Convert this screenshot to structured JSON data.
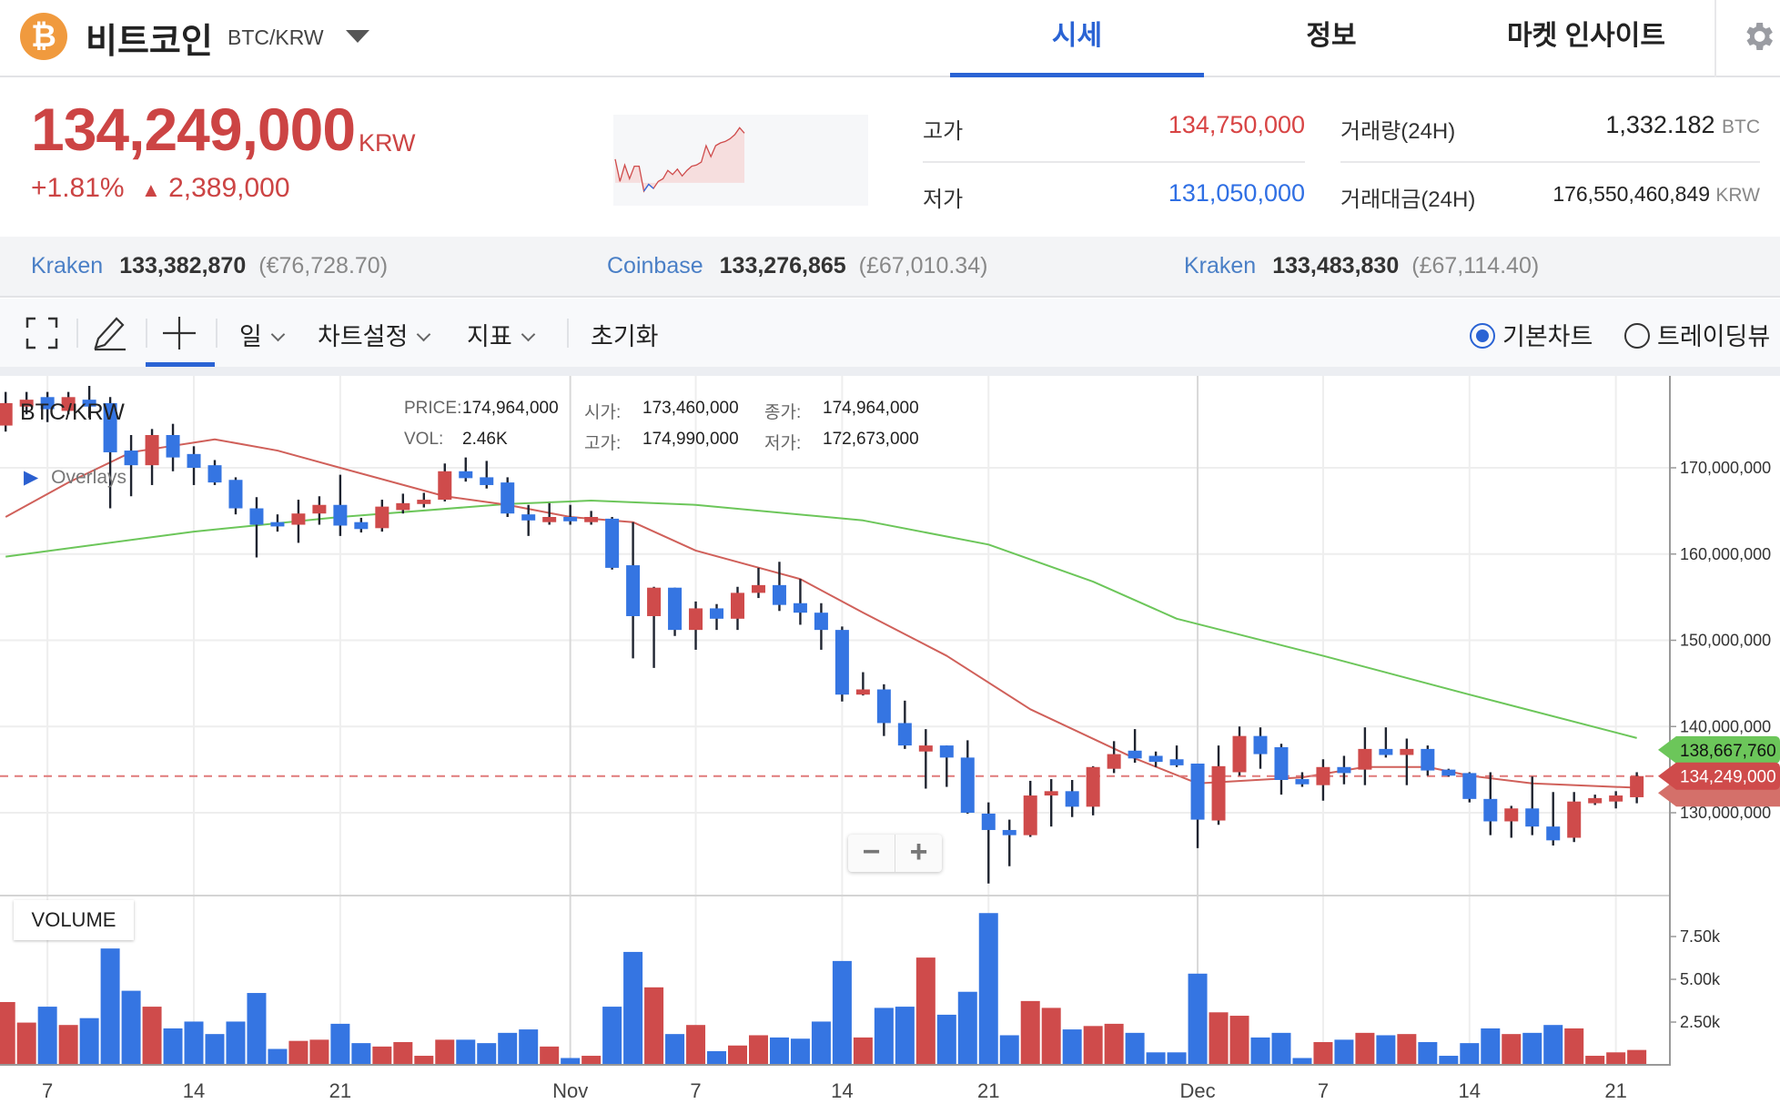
{
  "header": {
    "coin_name": "비트코인",
    "pair": "BTC/KRW",
    "logo_glyph": "₿",
    "tabs": [
      {
        "label": "시세",
        "active": true
      },
      {
        "label": "정보",
        "active": false
      },
      {
        "label": "마켓 인사이트",
        "active": false
      }
    ],
    "settings_icon": "gear-icon"
  },
  "ticker": {
    "price": "134,249,000",
    "unit": "KRW",
    "change_pct": "+1.81%",
    "change_arrow": "▲",
    "change_amount": "2,389,000",
    "sparkline": {
      "prev_close": 131860000,
      "points": [
        133000000,
        131930000,
        132720000,
        132060000,
        132660000,
        132660000,
        131460000,
        131790000,
        131590000,
        131930000,
        132060000,
        132460000,
        132260000,
        132520000,
        132190000,
        132460000,
        132660000,
        132720000,
        132860000,
        133650000,
        133120000,
        133650000,
        133780000,
        133850000,
        133980000,
        134180000,
        134510000,
        134250000
      ]
    },
    "stats": [
      {
        "label": "고가",
        "value": "134,750,000",
        "unit": "",
        "color": "#d84444"
      },
      {
        "label": "저가",
        "value": "131,050,000",
        "unit": "",
        "color": "#2f6fe4"
      },
      {
        "label": "거래량(24H)",
        "value": "1,332.182",
        "unit": "BTC",
        "color": "#222222"
      },
      {
        "label": "거래대금(24H)",
        "value": "176,550,460,849",
        "unit": "KRW",
        "color": "#222222"
      }
    ]
  },
  "exchanges": [
    {
      "name": "Kraken",
      "price": "133,382,870",
      "converted": "(€76,728.70)"
    },
    {
      "name": "Coinbase",
      "price": "133,276,865",
      "converted": "(£67,010.34)"
    },
    {
      "name": "Kraken",
      "price": "133,483,830",
      "converted": "(£67,114.40)"
    }
  ],
  "toolbar": {
    "fullscreen_icon": "expand-icon",
    "draw_icon": "pencil-icon",
    "crosshair_icon": "crosshair-icon",
    "interval": "일",
    "chart_settings": "차트설정",
    "indicators": "지표",
    "reset": "초기화",
    "chart_types": [
      {
        "label": "기본차트",
        "selected": true
      },
      {
        "label": "트레이딩뷰",
        "selected": false
      }
    ]
  },
  "chart_data": {
    "type": "candlestick",
    "symbol": "BTC/KRW",
    "overlays_label": "Overlays",
    "info": {
      "price_label": "PRICE:",
      "price": "174,964,000",
      "vol_label": "VOL:",
      "vol": "2.46K",
      "open_label": "시가:",
      "open": "173,460,000",
      "high_label": "고가:",
      "high": "174,990,000",
      "close_label": "종가:",
      "close": "174,964,000",
      "low_label": "저가:",
      "low": "172,673,000"
    },
    "colors": {
      "up": "#cf4b4b",
      "down": "#3575e2",
      "ma_short": "#d0605a",
      "ma_long": "#6cc65a"
    },
    "y_ticks": [
      170000000,
      160000000,
      150000000,
      140000000,
      130000000
    ],
    "y_tick_labels": [
      "170,000,000",
      "160,000,000",
      "150,000,000",
      "140,000,000",
      "130,000,000"
    ],
    "volume_ticks": [
      7500,
      5000,
      2500
    ],
    "volume_tick_labels": [
      "7.50k",
      "5.00k",
      "2.50k"
    ],
    "volume_label": "VOLUME",
    "x_ticks": [
      {
        "date": "10-07",
        "label": "7"
      },
      {
        "date": "10-14",
        "label": "14"
      },
      {
        "date": "10-21",
        "label": "21"
      },
      {
        "date": "11-01",
        "label": "Nov"
      },
      {
        "date": "11-07",
        "label": "7"
      },
      {
        "date": "11-14",
        "label": "14"
      },
      {
        "date": "11-21",
        "label": "21"
      },
      {
        "date": "12-01",
        "label": "Dec"
      },
      {
        "date": "12-07",
        "label": "7"
      },
      {
        "date": "12-14",
        "label": "14"
      },
      {
        "date": "12-21",
        "label": "21"
      }
    ],
    "last_price": 134249000,
    "last_price_label": "134,249,000",
    "ma_long_last": 138667760,
    "ma_long_last_label": "138,667,760",
    "candle_fields": [
      "date",
      "open",
      "high",
      "low",
      "close",
      "volume"
    ],
    "candles": [
      [
        "10-05",
        174900000,
        178800000,
        174200000,
        177500000,
        3670
      ],
      [
        "10-06",
        177100000,
        178800000,
        176200000,
        177900000,
        2470
      ],
      [
        "10-07",
        178200000,
        178800000,
        175300000,
        176800000,
        3400
      ],
      [
        "10-08",
        176600000,
        178800000,
        176200000,
        178200000,
        2330
      ],
      [
        "10-09",
        177900000,
        179500000,
        175800000,
        177100000,
        2730
      ],
      [
        "10-10",
        177500000,
        178200000,
        165300000,
        171800000,
        6800
      ],
      [
        "10-11",
        172000000,
        173800000,
        166700000,
        170300000,
        4330
      ],
      [
        "10-12",
        170300000,
        174500000,
        168000000,
        173800000,
        3400
      ],
      [
        "10-13",
        173800000,
        175100000,
        169600000,
        171200000,
        2130
      ],
      [
        "10-14",
        171600000,
        172500000,
        168000000,
        170000000,
        2530
      ],
      [
        "10-15",
        170300000,
        170900000,
        168000000,
        168300000,
        1800
      ],
      [
        "10-16",
        168600000,
        168900000,
        164600000,
        165300000,
        2530
      ],
      [
        "10-17",
        165300000,
        166600000,
        159600000,
        163400000,
        4200
      ],
      [
        "10-18",
        163700000,
        164600000,
        162600000,
        163200000,
        930
      ],
      [
        "10-19",
        163400000,
        166300000,
        161300000,
        164700000,
        1400
      ],
      [
        "10-20",
        164700000,
        166700000,
        163400000,
        165700000,
        1470
      ],
      [
        "10-21",
        165700000,
        169200000,
        162100000,
        163300000,
        2400
      ],
      [
        "10-22",
        163700000,
        164200000,
        162500000,
        162900000,
        1270
      ],
      [
        "10-23",
        163000000,
        166300000,
        162600000,
        165500000,
        1070
      ],
      [
        "10-24",
        165100000,
        167000000,
        164700000,
        165900000,
        1330
      ],
      [
        "10-25",
        165800000,
        167100000,
        165400000,
        166300000,
        530
      ],
      [
        "10-26",
        166300000,
        170500000,
        166100000,
        169600000,
        1470
      ],
      [
        "10-27",
        169600000,
        171200000,
        168400000,
        168800000,
        1470
      ],
      [
        "10-28",
        168900000,
        170800000,
        167600000,
        168000000,
        1270
      ],
      [
        "10-29",
        168300000,
        168900000,
        164300000,
        164700000,
        1870
      ],
      [
        "10-30",
        164600000,
        165700000,
        162100000,
        163900000,
        2070
      ],
      [
        "10-31",
        163700000,
        165900000,
        163400000,
        164300000,
        1070
      ],
      [
        "11-01",
        164300000,
        165700000,
        163400000,
        163800000,
        400
      ],
      [
        "11-02",
        163700000,
        165000000,
        163400000,
        164300000,
        530
      ],
      [
        "11-03",
        164100000,
        164300000,
        158200000,
        158400000,
        3400
      ],
      [
        "11-04",
        158700000,
        163700000,
        147900000,
        152800000,
        6600
      ],
      [
        "11-05",
        152800000,
        156200000,
        146800000,
        156100000,
        4530
      ],
      [
        "11-06",
        156100000,
        156100000,
        150500000,
        151200000,
        1800
      ],
      [
        "11-07",
        151200000,
        154500000,
        148900000,
        153700000,
        2330
      ],
      [
        "11-08",
        153700000,
        154200000,
        151200000,
        152500000,
        800
      ],
      [
        "11-09",
        152500000,
        156200000,
        151200000,
        155500000,
        1130
      ],
      [
        "11-10",
        155500000,
        158400000,
        154900000,
        156400000,
        1730
      ],
      [
        "11-11",
        156400000,
        159100000,
        153400000,
        154100000,
        1600
      ],
      [
        "11-12",
        154300000,
        157100000,
        151800000,
        153200000,
        1530
      ],
      [
        "11-13",
        153200000,
        154300000,
        148900000,
        151200000,
        2530
      ],
      [
        "11-14",
        151200000,
        151600000,
        142900000,
        143700000,
        6070
      ],
      [
        "11-15",
        143700000,
        146300000,
        143600000,
        144300000,
        1600
      ],
      [
        "11-16",
        144300000,
        144900000,
        138900000,
        140400000,
        3330
      ],
      [
        "11-17",
        140400000,
        143000000,
        137400000,
        137800000,
        3400
      ],
      [
        "11-18",
        137100000,
        139700000,
        132800000,
        137800000,
        6270
      ],
      [
        "11-19",
        137800000,
        137800000,
        133000000,
        136400000,
        2930
      ],
      [
        "11-20",
        136400000,
        138400000,
        129900000,
        130000000,
        4270
      ],
      [
        "11-21",
        129900000,
        131200000,
        121800000,
        128000000,
        8870
      ],
      [
        "11-22",
        128000000,
        129200000,
        123800000,
        127400000,
        1730
      ],
      [
        "11-23",
        127400000,
        133700000,
        127200000,
        132000000,
        3730
      ],
      [
        "11-24",
        132000000,
        133900000,
        128400000,
        132500000,
        3330
      ],
      [
        "11-25",
        132500000,
        133800000,
        129500000,
        130700000,
        2070
      ],
      [
        "11-26",
        130700000,
        135400000,
        129700000,
        135300000,
        2270
      ],
      [
        "11-27",
        135100000,
        138300000,
        134600000,
        136800000,
        2400
      ],
      [
        "11-28",
        137200000,
        139700000,
        135800000,
        136300000,
        1870
      ],
      [
        "11-29",
        136600000,
        137100000,
        135300000,
        135900000,
        730
      ],
      [
        "11-30",
        136200000,
        137800000,
        135300000,
        135500000,
        730
      ],
      [
        "12-01",
        135700000,
        135700000,
        125900000,
        129200000,
        5330
      ],
      [
        "12-02",
        129100000,
        137800000,
        128600000,
        135400000,
        3070
      ],
      [
        "12-03",
        134700000,
        140000000,
        134300000,
        138900000,
        2870
      ],
      [
        "12-04",
        138900000,
        139900000,
        135100000,
        136800000,
        1600
      ],
      [
        "12-05",
        137600000,
        138000000,
        132100000,
        133800000,
        1870
      ],
      [
        "12-06",
        133900000,
        134700000,
        133000000,
        133300000,
        400
      ],
      [
        "12-07",
        133200000,
        136200000,
        131400000,
        135300000,
        1330
      ],
      [
        "12-08",
        135300000,
        136600000,
        133300000,
        134600000,
        1470
      ],
      [
        "12-09",
        135000000,
        139900000,
        133200000,
        137400000,
        1870
      ],
      [
        "12-10",
        137400000,
        139900000,
        136400000,
        136700000,
        1730
      ],
      [
        "12-11",
        136700000,
        138600000,
        133200000,
        137400000,
        1800
      ],
      [
        "12-12",
        137400000,
        137800000,
        134300000,
        134900000,
        1330
      ],
      [
        "12-13",
        135000000,
        135100000,
        134200000,
        134300000,
        530
      ],
      [
        "12-14",
        134600000,
        134700000,
        131200000,
        131600000,
        1270
      ],
      [
        "12-15",
        131600000,
        134700000,
        127400000,
        129000000,
        2130
      ],
      [
        "12-16",
        129000000,
        130800000,
        127100000,
        130500000,
        1800
      ],
      [
        "12-17",
        130500000,
        134200000,
        127400000,
        128400000,
        1870
      ],
      [
        "12-18",
        128400000,
        132400000,
        126200000,
        126800000,
        2330
      ],
      [
        "12-19",
        127100000,
        132400000,
        126600000,
        131300000,
        2130
      ],
      [
        "12-20",
        131100000,
        132100000,
        130900000,
        131700000,
        530
      ],
      [
        "12-21",
        131300000,
        132500000,
        130500000,
        132000000,
        730
      ],
      [
        "12-22",
        131800000,
        134700000,
        131100000,
        134249000,
        870
      ]
    ],
    "ma_short": [
      [
        "10-05",
        164300000
      ],
      [
        "10-08",
        168300000
      ],
      [
        "10-11",
        171800000
      ],
      [
        "10-15",
        173300000
      ],
      [
        "10-18",
        172000000
      ],
      [
        "10-21",
        170000000
      ],
      [
        "10-26",
        166700000
      ],
      [
        "10-29",
        165700000
      ],
      [
        "11-01",
        164300000
      ],
      [
        "11-04",
        163700000
      ],
      [
        "11-07",
        160400000
      ],
      [
        "11-12",
        157100000
      ],
      [
        "11-15",
        153200000
      ],
      [
        "11-19",
        148200000
      ],
      [
        "11-23",
        142000000
      ],
      [
        "11-28",
        136300000
      ],
      [
        "12-01",
        133400000
      ],
      [
        "12-06",
        134100000
      ],
      [
        "12-09",
        135300000
      ],
      [
        "12-12",
        135300000
      ],
      [
        "12-14",
        134300000
      ],
      [
        "12-17",
        133400000
      ],
      [
        "12-22",
        132900000
      ]
    ],
    "ma_long": [
      [
        "10-05",
        159700000
      ],
      [
        "10-14",
        162600000
      ],
      [
        "10-21",
        164300000
      ],
      [
        "10-29",
        165800000
      ],
      [
        "11-02",
        166200000
      ],
      [
        "11-07",
        165700000
      ],
      [
        "11-15",
        163900000
      ],
      [
        "11-21",
        161100000
      ],
      [
        "11-26",
        156800000
      ],
      [
        "11-30",
        152500000
      ],
      [
        "12-07",
        148200000
      ],
      [
        "12-14",
        143700000
      ],
      [
        "12-22",
        138667760
      ]
    ]
  }
}
